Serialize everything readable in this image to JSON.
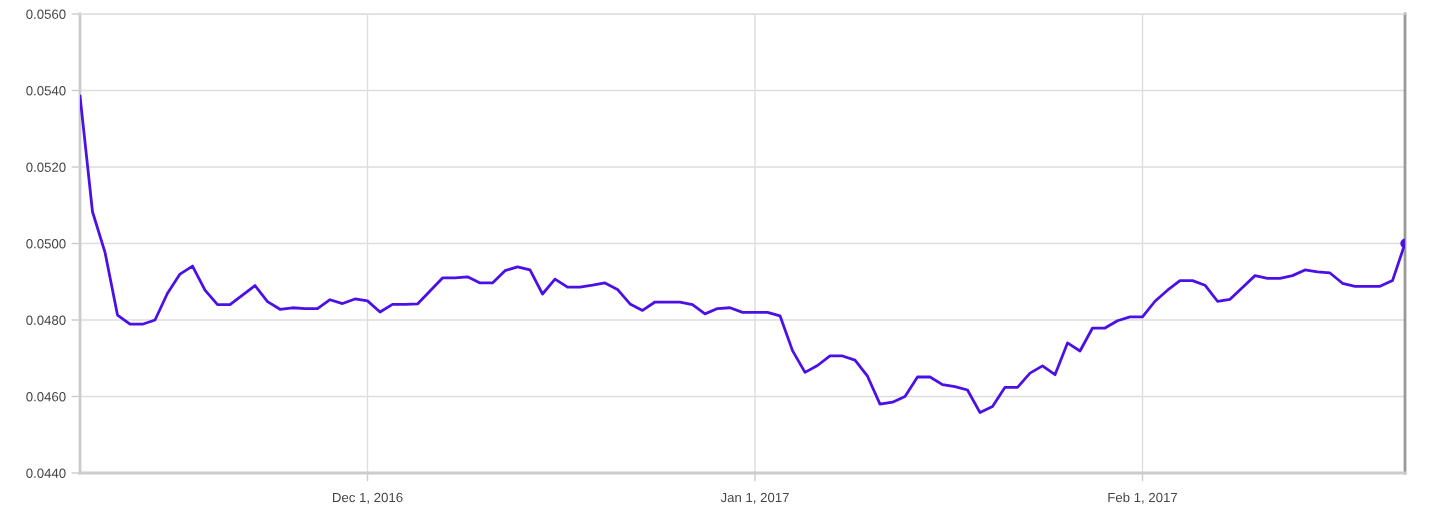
{
  "chart_data": {
    "type": "line",
    "x": [
      "2016-11-08",
      "2016-11-09",
      "2016-11-10",
      "2016-11-11",
      "2016-11-12",
      "2016-11-13",
      "2016-11-14",
      "2016-11-15",
      "2016-11-16",
      "2016-11-17",
      "2016-11-18",
      "2016-11-19",
      "2016-11-20",
      "2016-11-21",
      "2016-11-22",
      "2016-11-23",
      "2016-11-24",
      "2016-11-25",
      "2016-11-26",
      "2016-11-27",
      "2016-11-28",
      "2016-11-29",
      "2016-11-30",
      "2016-12-01",
      "2016-12-02",
      "2016-12-03",
      "2016-12-04",
      "2016-12-05",
      "2016-12-06",
      "2016-12-07",
      "2016-12-08",
      "2016-12-09",
      "2016-12-10",
      "2016-12-11",
      "2016-12-12",
      "2016-12-13",
      "2016-12-14",
      "2016-12-15",
      "2016-12-16",
      "2016-12-17",
      "2016-12-18",
      "2016-12-19",
      "2016-12-20",
      "2016-12-21",
      "2016-12-22",
      "2016-12-23",
      "2016-12-24",
      "2016-12-25",
      "2016-12-26",
      "2016-12-27",
      "2016-12-28",
      "2016-12-29",
      "2016-12-30",
      "2016-12-31",
      "2017-01-01",
      "2017-01-02",
      "2017-01-03",
      "2017-01-04",
      "2017-01-05",
      "2017-01-06",
      "2017-01-07",
      "2017-01-08",
      "2017-01-09",
      "2017-01-10",
      "2017-01-11",
      "2017-01-12",
      "2017-01-13",
      "2017-01-14",
      "2017-01-15",
      "2017-01-16",
      "2017-01-17",
      "2017-01-18",
      "2017-01-19",
      "2017-01-20",
      "2017-01-21",
      "2017-01-22",
      "2017-01-23",
      "2017-01-24",
      "2017-01-25",
      "2017-01-26",
      "2017-01-27",
      "2017-01-28",
      "2017-01-29",
      "2017-01-30",
      "2017-01-31",
      "2017-02-01",
      "2017-02-02",
      "2017-02-03",
      "2017-02-04",
      "2017-02-05",
      "2017-02-06",
      "2017-02-07",
      "2017-02-08",
      "2017-02-09",
      "2017-02-10",
      "2017-02-11",
      "2017-02-12",
      "2017-02-13",
      "2017-02-14",
      "2017-02-15",
      "2017-02-16",
      "2017-02-17",
      "2017-02-18",
      "2017-02-19",
      "2017-02-20",
      "2017-02-21",
      "2017-02-22"
    ],
    "series": [
      {
        "color": "#4b10e6",
        "values": [
          0.05386,
          0.05083,
          0.04977,
          0.04813,
          0.04789,
          0.04789,
          0.048,
          0.0487,
          0.0492,
          0.04941,
          0.04878,
          0.0484,
          0.0484,
          0.04865,
          0.0489,
          0.04848,
          0.04828,
          0.04832,
          0.0483,
          0.0483,
          0.04853,
          0.04843,
          0.04855,
          0.0485,
          0.04821,
          0.04841,
          0.04841,
          0.04842,
          0.04876,
          0.0491,
          0.0491,
          0.04913,
          0.04897,
          0.04897,
          0.04929,
          0.04939,
          0.04931,
          0.04868,
          0.04907,
          0.04886,
          0.04886,
          0.04891,
          0.04897,
          0.0488,
          0.04842,
          0.04825,
          0.04847,
          0.04847,
          0.04847,
          0.0484,
          0.04816,
          0.0483,
          0.04832,
          0.0482,
          0.0482,
          0.0482,
          0.04811,
          0.0472,
          0.04663,
          0.04681,
          0.04706,
          0.04706,
          0.04695,
          0.04653,
          0.0458,
          0.04585,
          0.046,
          0.04651,
          0.04651,
          0.04631,
          0.04626,
          0.04617,
          0.04558,
          0.04574,
          0.04624,
          0.04624,
          0.04661,
          0.0468,
          0.04657,
          0.0474,
          0.04719,
          0.04779,
          0.04779,
          0.04798,
          0.04808,
          0.04808,
          0.04849,
          0.04878,
          0.04903,
          0.04903,
          0.04891,
          0.04849,
          0.04854,
          0.04885,
          0.04916,
          0.04909,
          0.04909,
          0.04916,
          0.04931,
          0.04926,
          0.04923,
          0.04896,
          0.04888,
          0.04888,
          0.04888,
          0.04903,
          0.05
        ]
      },
      {
        "type": "scatter",
        "color": "#4b10e6",
        "x": [
          "2017-02-22"
        ],
        "values": [
          0.05
        ]
      }
    ],
    "xlim": [
      "2016-11-08",
      "2017-02-22"
    ],
    "xticks": [
      {
        "value": "2016-12-01",
        "label": "Dec 1, 2016"
      },
      {
        "value": "2017-01-01",
        "label": "Jan 1, 2017"
      },
      {
        "value": "2017-02-01",
        "label": "Feb 1, 2017"
      }
    ],
    "ylim": [
      0.044,
      0.056
    ],
    "yticks": [
      {
        "value": 0.044,
        "label": "0.0440"
      },
      {
        "value": 0.046,
        "label": "0.0460"
      },
      {
        "value": 0.048,
        "label": "0.0480"
      },
      {
        "value": 0.05,
        "label": "0.0500"
      },
      {
        "value": 0.052,
        "label": "0.0520"
      },
      {
        "value": 0.054,
        "label": "0.0540"
      },
      {
        "value": 0.056,
        "label": "0.0560"
      }
    ],
    "grid": true,
    "line_style": "solid"
  }
}
